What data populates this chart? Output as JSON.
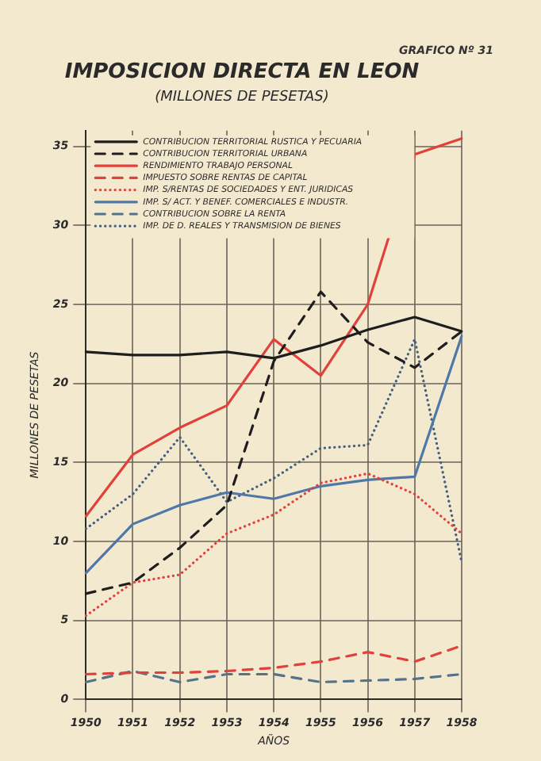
{
  "chart_data": {
    "type": "line",
    "title": "IMPOSICION DIRECTA EN LEON",
    "subtitle": "(MILLONES DE PESETAS)",
    "xlabel": "AÑOS",
    "ylabel": "MILLONES DE PESETAS",
    "annotations": [
      "GRAFICO Nº 31"
    ],
    "categories": [
      "1950",
      "1951",
      "1952",
      "1953",
      "1954",
      "1955",
      "1956",
      "1957",
      "1958"
    ],
    "ylim": [
      0,
      36
    ],
    "yticks": [
      0,
      5,
      10,
      15,
      20,
      25,
      30,
      35
    ],
    "grid": true,
    "legend": "top left",
    "marker": "none",
    "series": [
      {
        "name": "CONTRIBUCION TERRITORIAL RUSTICA Y PECUARIA",
        "color": "#1e1e1e",
        "line_style": "solid",
        "values": [
          22,
          21.8,
          21.8,
          22,
          21.6,
          22.4,
          23.4,
          24.2,
          23.3
        ]
      },
      {
        "name": "CONTRIBUCION TERRITORIAL URBANA",
        "color": "#1e1e1e",
        "line_style": "dashed",
        "values": [
          6.7,
          7.4,
          9.6,
          12.3,
          21.4,
          25.8,
          22.6,
          21,
          23.3
        ]
      },
      {
        "name": "RENDIMIENTO TRABAJO PERSONAL",
        "color": "#e0413a",
        "line_style": "solid",
        "values": [
          11.6,
          15.5,
          17.2,
          18.6,
          22.8,
          20.5,
          25,
          34.5,
          35.5
        ]
      },
      {
        "name": "IMPUESTO SOBRE RENTAS DE CAPITAL",
        "color": "#e0413a",
        "line_style": "dashed",
        "values": [
          1.6,
          1.7,
          1.7,
          1.8,
          2,
          2.4,
          3,
          2.4,
          3.4
        ]
      },
      {
        "name": "IMP. S/RENTAS DE SOCIEDADES Y ENT. JURIDICAS",
        "color": "#e0413a",
        "line_style": "dotted",
        "values": [
          5.3,
          7.4,
          7.9,
          10.5,
          11.7,
          13.7,
          14.3,
          13,
          10.5
        ]
      },
      {
        "name": "IMP. S/ ACT. Y BENEF. COMERCIALES E INDUSTR.",
        "color": "#4f78a8",
        "line_style": "solid",
        "values": [
          8,
          11.1,
          12.3,
          13.1,
          12.7,
          13.5,
          13.9,
          14.1,
          23
        ]
      },
      {
        "name": "CONTRIBUCION SOBRE LA RENTA",
        "color": "#56718a",
        "line_style": "dashed",
        "values": [
          1.1,
          1.8,
          1.1,
          1.6,
          1.6,
          1.1,
          1.2,
          1.3,
          1.6
        ]
      },
      {
        "name": "IMP. DE D. REALES Y TRANSMISION DE BIENES",
        "color": "#44607e",
        "line_style": "dotted",
        "values": [
          10.8,
          13,
          16.6,
          12.5,
          14,
          15.9,
          16.1,
          22.8,
          8.7
        ]
      }
    ]
  }
}
